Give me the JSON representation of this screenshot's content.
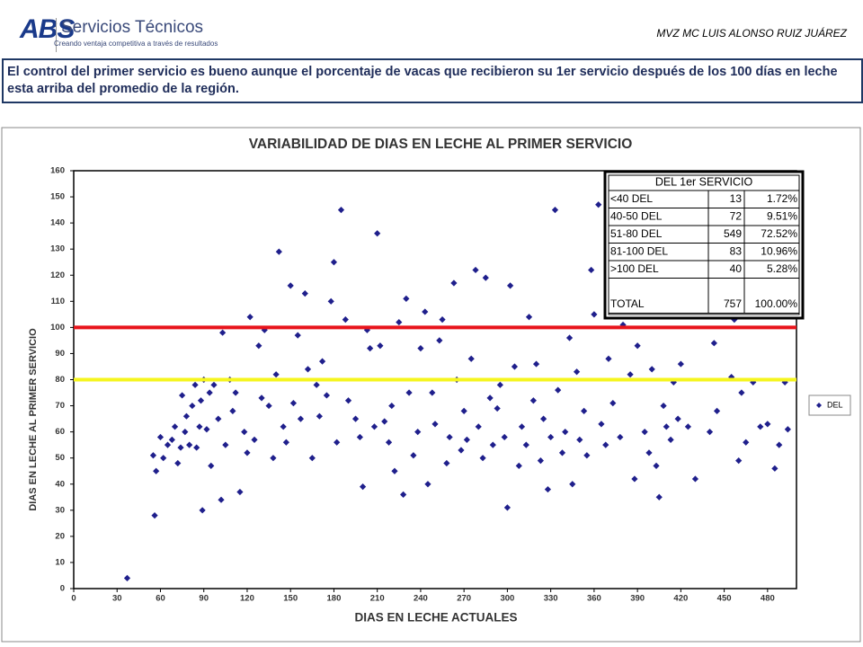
{
  "header": {
    "logo": "ABS",
    "brand": "Servicios Técnicos",
    "tagline": "Creando ventaja competitiva a través de resultados",
    "author": "MVZ MC LUIS ALONSO RUIZ JUÁREZ",
    "message": "El control del primer servicio es bueno aunque el porcentaje de vacas que recibieron su 1er servicio después de los 100 días en leche esta arriba del promedio de la región."
  },
  "chart_data": {
    "type": "scatter",
    "title": "VARIABILIDAD DE DIAS EN LECHE AL PRIMER SERVICIO",
    "x_label": "DIAS EN LECHE ACTUALES",
    "y_label": "DIAS EN LECHE AL PRIMER SERVICIO",
    "xlim": [
      0,
      500
    ],
    "xticks": [
      0,
      30,
      60,
      90,
      120,
      150,
      180,
      210,
      240,
      270,
      300,
      330,
      360,
      390,
      420,
      450,
      480
    ],
    "ylim": [
      0,
      160
    ],
    "yticks": [
      0,
      10,
      20,
      30,
      40,
      50,
      60,
      70,
      80,
      90,
      100,
      110,
      120,
      130,
      140,
      150,
      160
    ],
    "grid": false,
    "legend": "right",
    "reference_lines": [
      {
        "value": 100,
        "color": "#e8141b"
      },
      {
        "value": 80,
        "color": "#f5f51e"
      }
    ],
    "x": [
      37,
      55,
      56,
      57,
      60,
      62,
      65,
      68,
      70,
      72,
      74,
      75,
      77,
      78,
      80,
      82,
      84,
      85,
      87,
      88,
      89,
      90,
      92,
      94,
      95,
      97,
      100,
      102,
      103,
      105,
      108,
      110,
      112,
      115,
      118,
      120,
      122,
      125,
      128,
      130,
      132,
      135,
      138,
      140,
      142,
      145,
      147,
      150,
      152,
      155,
      157,
      160,
      162,
      165,
      168,
      170,
      172,
      175,
      178,
      180,
      182,
      185,
      188,
      190,
      195,
      198,
      200,
      203,
      205,
      208,
      210,
      212,
      215,
      218,
      220,
      222,
      225,
      228,
      230,
      232,
      235,
      238,
      240,
      243,
      245,
      248,
      250,
      253,
      255,
      258,
      260,
      263,
      265,
      268,
      270,
      272,
      275,
      278,
      280,
      283,
      285,
      288,
      290,
      293,
      295,
      298,
      300,
      302,
      305,
      308,
      310,
      313,
      315,
      318,
      320,
      323,
      325,
      328,
      330,
      333,
      335,
      338,
      340,
      343,
      345,
      348,
      350,
      353,
      355,
      358,
      360,
      363,
      365,
      368,
      370,
      373,
      375,
      378,
      380,
      385,
      388,
      390,
      395,
      398,
      400,
      403,
      405,
      408,
      410,
      413,
      415,
      418,
      420,
      425,
      430,
      440,
      443,
      445,
      455,
      457,
      460,
      462,
      465,
      470,
      475,
      480,
      485,
      488,
      492,
      494
    ],
    "series": [
      {
        "name": "DEL",
        "color": "#1f1f8c",
        "values": [
          4,
          51,
          28,
          45,
          58,
          50,
          55,
          57,
          62,
          48,
          54,
          74,
          60,
          66,
          55,
          70,
          78,
          54,
          62,
          72,
          30,
          80,
          61,
          75,
          47,
          78,
          65,
          34,
          98,
          55,
          80,
          68,
          75,
          37,
          60,
          52,
          104,
          57,
          93,
          73,
          99,
          70,
          50,
          82,
          129,
          62,
          56,
          116,
          71,
          97,
          65,
          113,
          84,
          50,
          78,
          66,
          87,
          74,
          110,
          125,
          56,
          145,
          103,
          72,
          65,
          58,
          39,
          99,
          92,
          62,
          136,
          93,
          64,
          56,
          70,
          45,
          102,
          36,
          111,
          75,
          51,
          60,
          92,
          106,
          40,
          75,
          63,
          95,
          103,
          48,
          58,
          117,
          80,
          53,
          68,
          57,
          88,
          122,
          62,
          50,
          119,
          73,
          55,
          69,
          78,
          58,
          31,
          116,
          85,
          47,
          62,
          55,
          104,
          72,
          86,
          49,
          65,
          38,
          58,
          145,
          76,
          52,
          60,
          96,
          40,
          83,
          57,
          68,
          51,
          122,
          105,
          147,
          63,
          55,
          88,
          71,
          124,
          58,
          101,
          82,
          42,
          93,
          60,
          52,
          84,
          47,
          35,
          70,
          62,
          57,
          79,
          65,
          86,
          62,
          42,
          60,
          94,
          68,
          81,
          103,
          49,
          75,
          56,
          79,
          62,
          63,
          46,
          55,
          79,
          61
        ]
      }
    ],
    "summary_table": {
      "title": "DEL 1er SERVICIO",
      "rows": [
        [
          "<40 DEL",
          "13",
          "1.72%"
        ],
        [
          "40-50 DEL",
          "72",
          "9.51%"
        ],
        [
          "51-80 DEL",
          "549",
          "72.52%"
        ],
        [
          "81-100 DEL",
          "83",
          "10.96%"
        ],
        [
          ">100 DEL",
          "40",
          "5.28%"
        ]
      ],
      "total": [
        "TOTAL",
        "757",
        "100.00%"
      ]
    }
  }
}
